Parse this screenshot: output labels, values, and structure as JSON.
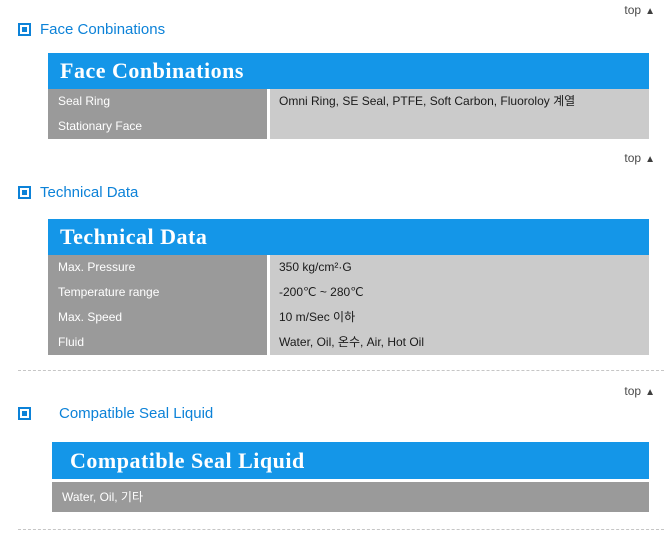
{
  "colors": {
    "table_header_blue": "#1496e8",
    "heading_text_blue": "#0c82d8",
    "label_column_gray": "#9a9a9a",
    "value_column_gray": "#cbcbcb",
    "top_link_gray": "#4a4a4a"
  },
  "top_link": {
    "label": "top",
    "arrow": "▲"
  },
  "sections": [
    {
      "heading": "Face Conbinations",
      "table_header": "Face Conbinations",
      "rows": [
        {
          "label": "Seal Ring",
          "value": "Omni Ring, SE Seal, PTFE, Soft Carbon, Fluoroloy 계열"
        },
        {
          "label": "Stationary Face",
          "value": ""
        }
      ]
    },
    {
      "heading": "Technical Data",
      "table_header": "Technical Data",
      "rows": [
        {
          "label": "Max. Pressure",
          "value": "350 kg/cm²·G"
        },
        {
          "label": "Temperature range",
          "value": "-200℃ ~ 280℃"
        },
        {
          "label": "Max. Speed",
          "value": "10 m/Sec 이하"
        },
        {
          "label": "Fluid",
          "value": "Water, Oil, 온수, Air, Hot Oil"
        }
      ]
    },
    {
      "heading": "Compatible Seal Liquid",
      "table_header": "Compatible Seal Liquid",
      "rows": [
        {
          "label": "Water, Oil, 기타",
          "value": ""
        }
      ]
    }
  ]
}
